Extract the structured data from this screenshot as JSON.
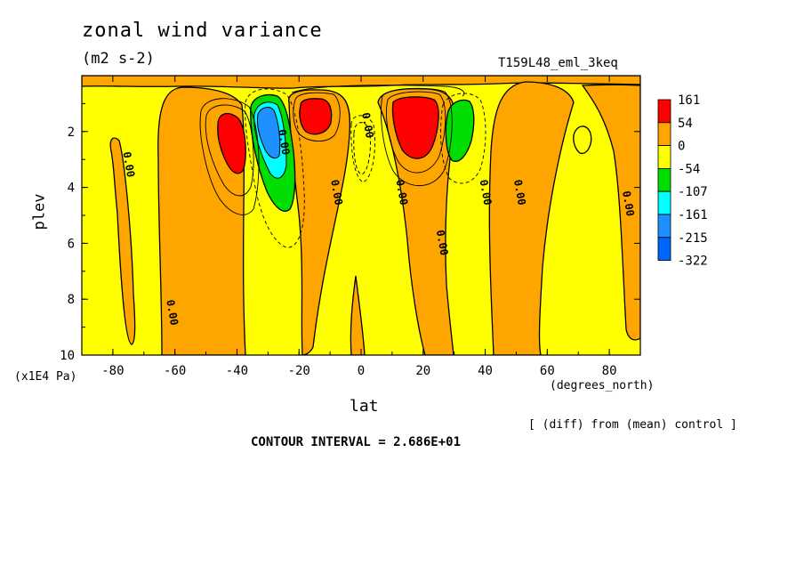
{
  "chart_data": {
    "type": "heatmap",
    "title": "zonal wind variance",
    "units": "(m2 s-2)",
    "run_label": "T159L48_eml_3keq",
    "xlabel": "lat",
    "x_units": "(degrees_north)",
    "ylabel": "plev",
    "y_units": "(x1E4 Pa)",
    "xlim": [
      -90,
      90
    ],
    "ylim": [
      10,
      0
    ],
    "x_ticks": [
      "-80",
      "-60",
      "-40",
      "-20",
      "0",
      "20",
      "40",
      "60",
      "80"
    ],
    "y_ticks": [
      "2",
      "4",
      "6",
      "8",
      "10"
    ],
    "legend": {
      "placement": "right",
      "levels": [
        "161",
        "54",
        "0",
        "-54",
        "-107",
        "-161",
        "-215",
        "-322"
      ],
      "colors": [
        "#ff0000",
        "#ffa500",
        "#ffff00",
        "#00dd00",
        "#00ffff",
        "#1e90ff",
        "#0066ff"
      ]
    },
    "contour_labels": [
      "0.00",
      "0.00",
      "0.00",
      "0.00",
      "0.00",
      "0.00",
      "0.00",
      "0.00",
      "0.00",
      "0.00"
    ],
    "note": "[ (diff) from (mean) control ]",
    "contour_interval": "CONTOUR INTERVAL = 2.686E+01"
  }
}
